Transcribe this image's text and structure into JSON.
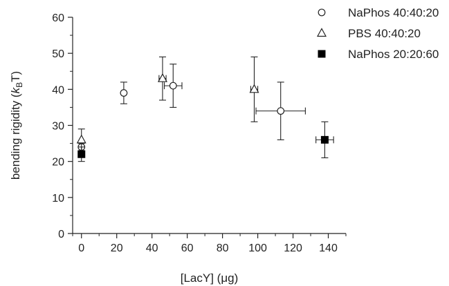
{
  "chart_data": {
    "type": "scatter",
    "title": "",
    "xlabel": "[LacY] (μg)",
    "ylabel": "bending rigidity (kBT)",
    "ylabel_parts": {
      "prefix": "bending rigidity (",
      "k": "k",
      "sub": "B",
      "suffix": "T)"
    },
    "xlim": [
      -5,
      150
    ],
    "ylim": [
      0,
      60
    ],
    "xticks": [
      0,
      20,
      40,
      60,
      80,
      100,
      120,
      140
    ],
    "yticks": [
      0,
      10,
      20,
      30,
      40,
      50,
      60
    ],
    "grid": false,
    "legend_position": "top-right",
    "series": [
      {
        "name": "NaPhos 40:40:20",
        "marker": "circle-open",
        "points": [
          {
            "x": 0,
            "y": 24,
            "yerr": 1,
            "xerr": 0
          },
          {
            "x": 24,
            "y": 39,
            "yerr": 3,
            "xerr": 0
          },
          {
            "x": 52,
            "y": 41,
            "yerr": 6,
            "xerr": 5
          },
          {
            "x": 113,
            "y": 34,
            "yerr": 8,
            "xerr": 14
          }
        ]
      },
      {
        "name": "PBS 40:40:20",
        "marker": "triangle-open",
        "points": [
          {
            "x": 0,
            "y": 26,
            "yerr": 3,
            "xerr": 0
          },
          {
            "x": 46,
            "y": 43,
            "yerr": 6,
            "xerr": 2
          },
          {
            "x": 98,
            "y": 40,
            "yerr": 9,
            "xerr": 2
          }
        ]
      },
      {
        "name": "NaPhos 20:20:60",
        "marker": "square-filled",
        "points": [
          {
            "x": 0,
            "y": 22,
            "yerr": 2,
            "xerr": 0
          },
          {
            "x": 138,
            "y": 26,
            "yerr": 5,
            "xerr": 5
          }
        ]
      }
    ]
  }
}
